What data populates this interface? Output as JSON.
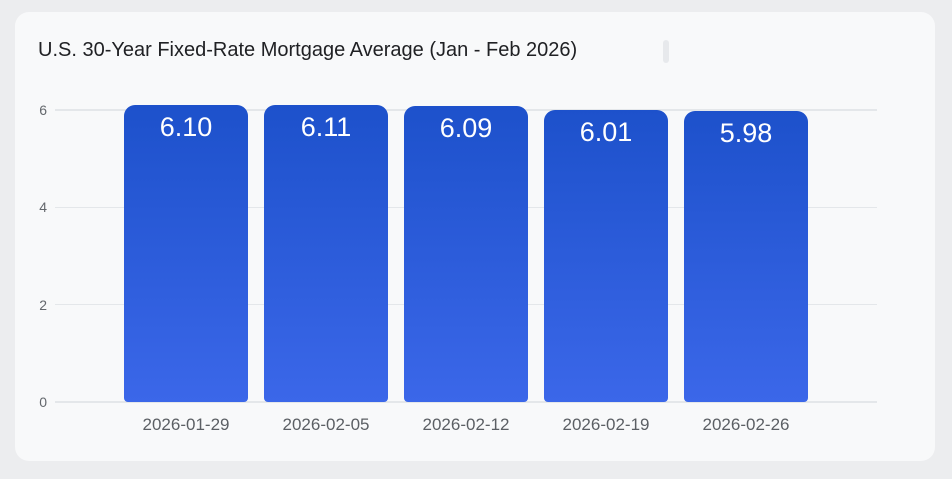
{
  "card": {
    "title": "U.S. 30-Year Fixed-Rate Mortgage Average (Jan - Feb 2026)"
  },
  "chart_data": {
    "type": "bar",
    "title": "U.S. 30-Year Fixed-Rate Mortgage Average (Jan - Feb 2026)",
    "categories": [
      "2026-01-29",
      "2026-02-05",
      "2026-02-12",
      "2026-02-19",
      "2026-02-26"
    ],
    "values": [
      6.1,
      6.11,
      6.09,
      6.01,
      5.98
    ],
    "value_labels": [
      "6.10",
      "6.11",
      "6.09",
      "6.01",
      "5.98"
    ],
    "xlabel": "",
    "ylabel": "",
    "ylim": [
      0,
      6
    ],
    "yticks": [
      0,
      2,
      4,
      6
    ],
    "ytick_labels": [
      "0",
      "2",
      "4",
      "6"
    ],
    "grid": true,
    "legend": false
  },
  "colors": {
    "page_bg": "#ecedef",
    "card_bg": "#f8f9fa",
    "gridline": "#e4e7ea",
    "tick_text": "#63676c",
    "axis_label_text": "#5b5f64",
    "title_text": "#202124",
    "bar_top": "#1d51cb",
    "bar_bottom": "#3b67e9",
    "value_label": "#ffffff"
  }
}
